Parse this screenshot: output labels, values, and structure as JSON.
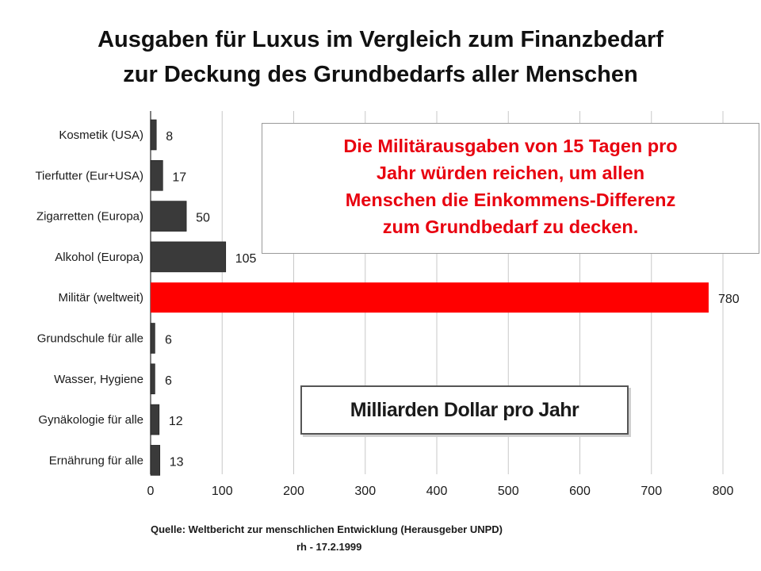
{
  "title": {
    "line1": "Ausgaben für Luxus im Vergleich zum Finanzbedarf",
    "line2": "zur Deckung des Grundbedarfs aller Menschen"
  },
  "callout": {
    "lines": [
      "Die Militärausgaben von 15 Tagen pro",
      "Jahr würden reichen, um allen",
      "Menschen die Einkommens-Differenz",
      "zum Grundbedarf zu decken."
    ],
    "color": "#e8000f"
  },
  "unit_label": "Milliarden Dollar pro Jahr",
  "source": "Quelle: Weltbericht zur menschlichen Entwicklung (Herausgeber UNPD)",
  "stamp": "rh - 17.2.1999",
  "chart_data": {
    "type": "bar",
    "orientation": "horizontal",
    "categories": [
      "Kosmetik (USA)",
      "Tierfutter (Eur+USA)",
      "Zigarretten (Europa)",
      "Alkohol (Europa)",
      "Militär (weltweit)",
      "Grundschule für alle",
      "Wasser, Hygiene",
      "Gynäkologie für alle",
      "Ernährung für alle"
    ],
    "values": [
      8,
      17,
      50,
      105,
      780,
      6,
      6,
      12,
      13
    ],
    "value_labels": [
      "8",
      "17",
      "50",
      "105",
      "780",
      "6",
      "6",
      "12",
      "13"
    ],
    "bar_colors": [
      "#3a3a3a",
      "#3a3a3a",
      "#3a3a3a",
      "#3a3a3a",
      "#ff0000",
      "#3a3a3a",
      "#3a3a3a",
      "#3a3a3a",
      "#3a3a3a"
    ],
    "xlim": [
      0,
      800
    ],
    "xticks": [
      0,
      100,
      200,
      300,
      400,
      500,
      600,
      700,
      800
    ],
    "xtick_labels": [
      "0",
      "100",
      "200",
      "300",
      "400",
      "500",
      "600",
      "700",
      "800"
    ],
    "grid": true,
    "xlabel": "",
    "ylabel": ""
  }
}
